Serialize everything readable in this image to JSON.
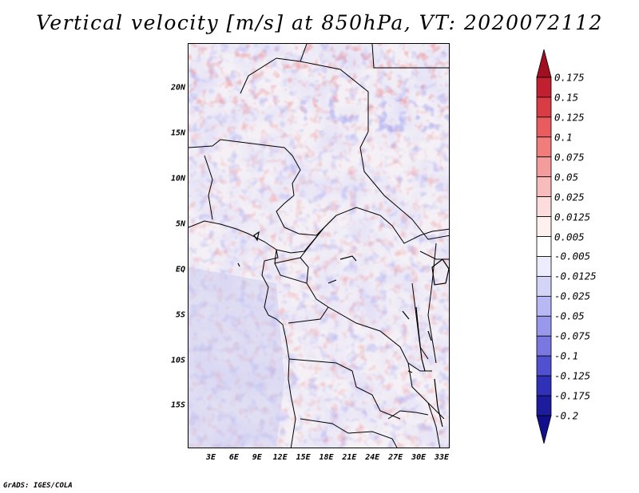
{
  "title": "Vertical velocity [m/s] at 850hPa, VT: 2020072112",
  "credit": "GrADS: IGES/COLA",
  "map": {
    "lat_labels": [
      "20N",
      "15N",
      "10N",
      "5N",
      "EQ",
      "5S",
      "10S",
      "15S"
    ],
    "lon_labels": [
      "3E",
      "6E",
      "9E",
      "12E",
      "15E",
      "18E",
      "21E",
      "24E",
      "27E",
      "30E",
      "33E"
    ]
  },
  "colorbar": {
    "labels": [
      "0.175",
      "0.15",
      "0.125",
      "0.1",
      "0.075",
      "0.05",
      "0.025",
      "0.0125",
      "0.005",
      "-0.005",
      "-0.0125",
      "-0.025",
      "-0.05",
      "-0.075",
      "-0.1",
      "-0.125",
      "-0.175",
      "-0.2"
    ],
    "colors": [
      "#a01020",
      "#c02030",
      "#d83c44",
      "#e85c60",
      "#f07c7c",
      "#f49c9c",
      "#f8bcbc",
      "#fcdcdc",
      "#fff0f0",
      "#ffffff",
      "#ececfc",
      "#d4d4f8",
      "#b8b8f4",
      "#9898ec",
      "#7878e0",
      "#5050d0",
      "#3030b8",
      "#1c1c9c",
      "#10108c"
    ]
  }
}
